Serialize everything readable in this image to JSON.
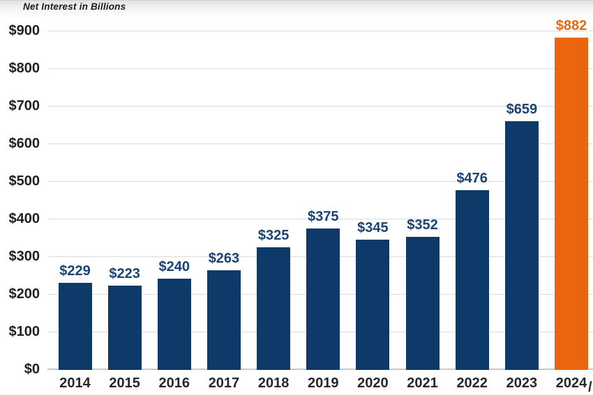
{
  "chart_data": {
    "type": "bar",
    "title": "Net Interest in Billions",
    "categories": [
      "2014",
      "2015",
      "2016",
      "2017",
      "2018",
      "2019",
      "2020",
      "2021",
      "2022",
      "2023",
      "2024"
    ],
    "values": [
      229,
      223,
      240,
      263,
      325,
      375,
      345,
      352,
      476,
      659,
      882
    ],
    "value_labels": [
      "$229",
      "$223",
      "$240",
      "$263",
      "$325",
      "$375",
      "$345",
      "$352",
      "$476",
      "$659",
      "$882"
    ],
    "y_ticks": [
      "$0",
      "$100",
      "$200",
      "$300",
      "$400",
      "$500",
      "$600",
      "$700",
      "$800",
      "$900"
    ],
    "ylim": [
      0,
      900
    ],
    "y_tick_step": 100,
    "grid": true,
    "legend": false,
    "xlabel": "",
    "ylabel": "",
    "bar_color": "#0e3a69",
    "highlight_color": "#eb650e",
    "highlight_index": 10,
    "value_label_color": "#1a4374",
    "highlight_value_label_color": "#e8680f",
    "last_tick_suffix": "/"
  }
}
